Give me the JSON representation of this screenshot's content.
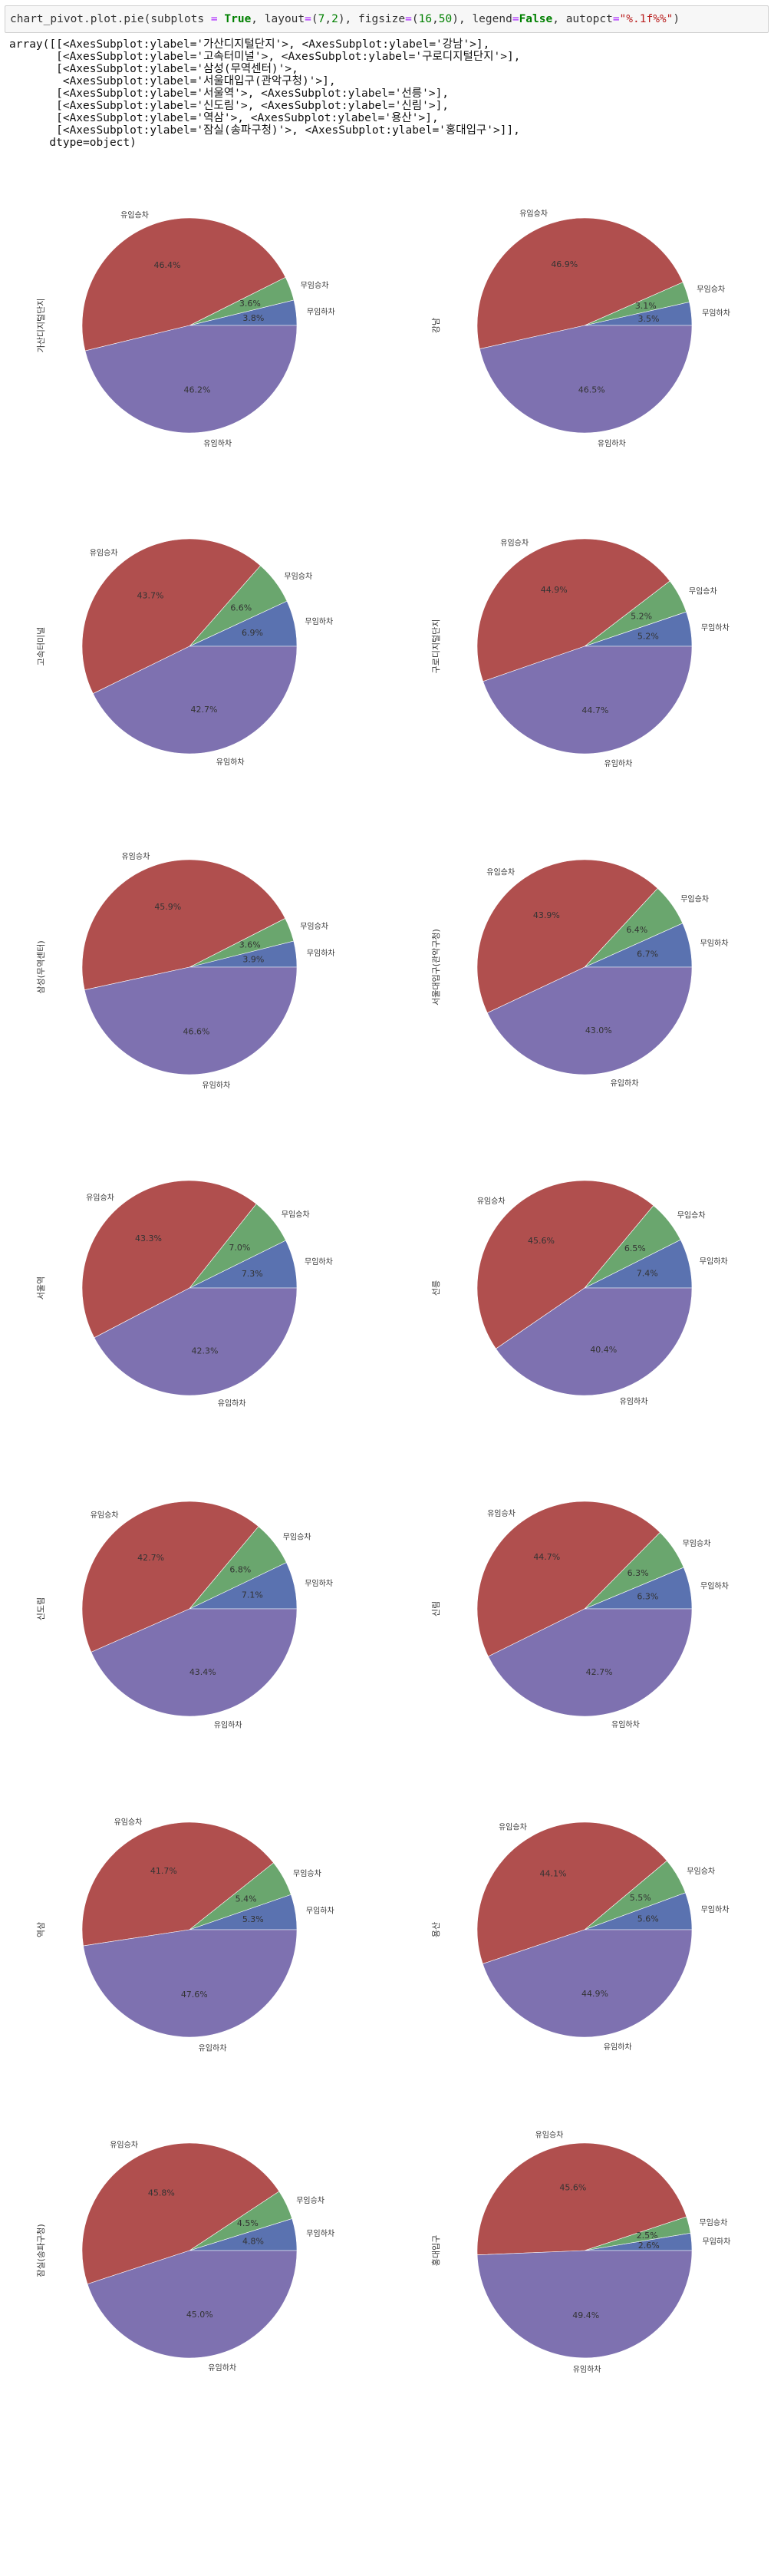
{
  "code_cell": {
    "tokens": [
      {
        "t": "chart_pivot.plot.pie(subplots ",
        "c": ""
      },
      {
        "t": "=",
        "c": "op"
      },
      {
        "t": " ",
        "c": ""
      },
      {
        "t": "True",
        "c": "kw"
      },
      {
        "t": ", layout",
        "c": ""
      },
      {
        "t": "=",
        "c": "op"
      },
      {
        "t": "(",
        "c": ""
      },
      {
        "t": "7",
        "c": "num"
      },
      {
        "t": ",",
        "c": ""
      },
      {
        "t": "2",
        "c": "num"
      },
      {
        "t": "), figsize",
        "c": ""
      },
      {
        "t": "=",
        "c": "op"
      },
      {
        "t": "(",
        "c": ""
      },
      {
        "t": "16",
        "c": "num"
      },
      {
        "t": ",",
        "c": ""
      },
      {
        "t": "50",
        "c": "num"
      },
      {
        "t": "), legend",
        "c": ""
      },
      {
        "t": "=",
        "c": "op"
      },
      {
        "t": "False",
        "c": "kw"
      },
      {
        "t": ", autopct",
        "c": ""
      },
      {
        "t": "=",
        "c": "op"
      },
      {
        "t": "\"%.1f%%\"",
        "c": "str"
      },
      {
        "t": ")",
        "c": ""
      }
    ]
  },
  "output_text": "array([[<AxesSubplot:ylabel='가산디지털단지'>, <AxesSubplot:ylabel='강남'>],\n       [<AxesSubplot:ylabel='고속터미널'>, <AxesSubplot:ylabel='구로디지털단지'>],\n       [<AxesSubplot:ylabel='삼성(무역센터)'>,\n        <AxesSubplot:ylabel='서울대입구(관악구청)'>],\n       [<AxesSubplot:ylabel='서울역'>, <AxesSubplot:ylabel='선릉'>],\n       [<AxesSubplot:ylabel='신도림'>, <AxesSubplot:ylabel='신림'>],\n       [<AxesSubplot:ylabel='역삼'>, <AxesSubplot:ylabel='용산'>],\n       [<AxesSubplot:ylabel='잠실(송파구청)'>, <AxesSubplot:ylabel='홍대입구'>]],\n      dtype=object)",
  "chart_data": {
    "type": "pie",
    "layout": [
      7,
      2
    ],
    "legend": false,
    "autopct": "%.1f%%",
    "categories": [
      "무임하차",
      "무임승차",
      "유임승차",
      "유임하차"
    ],
    "colors": [
      "#5a72b0",
      "#6aa66e",
      "#b04f4e",
      "#7e71b0"
    ],
    "subplots": [
      {
        "ylabel": "가산디지털단지",
        "values": [
          3.8,
          3.6,
          46.4,
          46.2
        ]
      },
      {
        "ylabel": "강남",
        "values": [
          3.5,
          3.1,
          46.9,
          46.5
        ]
      },
      {
        "ylabel": "고속터미널",
        "values": [
          6.9,
          6.6,
          43.7,
          42.7
        ]
      },
      {
        "ylabel": "구로디지털단지",
        "values": [
          5.2,
          5.2,
          44.9,
          44.7
        ]
      },
      {
        "ylabel": "삼성(무역센터)",
        "values": [
          3.9,
          3.6,
          45.9,
          46.6
        ]
      },
      {
        "ylabel": "서울대입구(관악구청)",
        "values": [
          6.7,
          6.4,
          43.9,
          43.0
        ]
      },
      {
        "ylabel": "서울역",
        "values": [
          7.3,
          7.0,
          43.3,
          42.3
        ]
      },
      {
        "ylabel": "선릉",
        "values": [
          7.4,
          6.5,
          45.6,
          40.4
        ]
      },
      {
        "ylabel": "신도림",
        "values": [
          7.1,
          6.8,
          42.7,
          43.4
        ]
      },
      {
        "ylabel": "신림",
        "values": [
          6.3,
          6.3,
          44.7,
          42.7
        ]
      },
      {
        "ylabel": "역삼",
        "values": [
          5.3,
          5.4,
          41.7,
          47.6
        ]
      },
      {
        "ylabel": "용산",
        "values": [
          5.6,
          5.5,
          44.1,
          44.9
        ]
      },
      {
        "ylabel": "잠실(송파구청)",
        "values": [
          4.8,
          4.5,
          45.8,
          45.0
        ]
      },
      {
        "ylabel": "홍대입구",
        "values": [
          2.6,
          2.5,
          45.6,
          49.4
        ]
      }
    ]
  }
}
